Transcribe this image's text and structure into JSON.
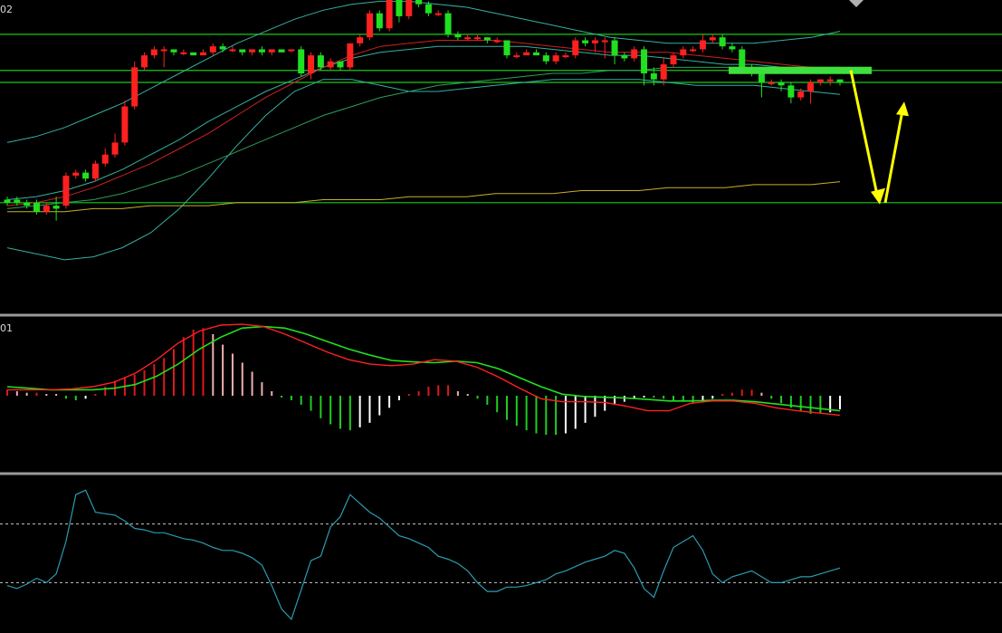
{
  "panels": {
    "price_label": "02",
    "macd_label": "01",
    "osc_label": ""
  },
  "colors": {
    "background": "#000000",
    "up_candle": "#ff2020",
    "down_candle": "#20e020",
    "horizontal_level": "#19c819",
    "bollinger": "#35b0a0",
    "ma_short": "#cc2222",
    "ma_mid": "#2e9e5a",
    "ma_long": "#c8b028",
    "annotation_arrow": "#ffff00",
    "resistance_bar": "#3ee03e",
    "macd_dif": "#ff2020",
    "macd_dea": "#20e020",
    "hist_pos": "#e01818",
    "hist_pos_fading": "#f0b0b0",
    "hist_neg": "#20cc20",
    "hist_neg_fading": "#ffffff",
    "oscillator": "#2a9cb0",
    "panel_divider": "#9a9a9a",
    "dashed_ref": "#c8c8c8"
  },
  "chart_data": {
    "type": "candlestick-with-indicators",
    "bar_count": 86,
    "price_panel": {
      "ylim": [
        0,
        100
      ],
      "horizontal_levels": [
        91,
        79,
        75,
        35
      ],
      "candles": [
        [
          36,
          35,
          34,
          37
        ],
        [
          36,
          35,
          34,
          37
        ],
        [
          35,
          34,
          33,
          36
        ],
        [
          35,
          32,
          31,
          36
        ],
        [
          32,
          34,
          31,
          35
        ],
        [
          34,
          33,
          29,
          37
        ],
        [
          34,
          44,
          33,
          45
        ],
        [
          44,
          45,
          43,
          46
        ],
        [
          45,
          43,
          42,
          46
        ],
        [
          43,
          48,
          42,
          49
        ],
        [
          48,
          51,
          47,
          53
        ],
        [
          51,
          55,
          50,
          58
        ],
        [
          55,
          67,
          54,
          69
        ],
        [
          67,
          80,
          66,
          82
        ],
        [
          80,
          84,
          79,
          85
        ],
        [
          84,
          86,
          83,
          87
        ],
        [
          86,
          86,
          80,
          87
        ],
        [
          86,
          85,
          84,
          86
        ],
        [
          85,
          85,
          84,
          86
        ],
        [
          85,
          84,
          84,
          85
        ],
        [
          84,
          85,
          84,
          86
        ],
        [
          85,
          87,
          84,
          88
        ],
        [
          87,
          86,
          85,
          88
        ],
        [
          86,
          86,
          85,
          87
        ],
        [
          86,
          85,
          84,
          86
        ],
        [
          85,
          86,
          84,
          86
        ],
        [
          86,
          85,
          84,
          87
        ],
        [
          85,
          86,
          84,
          86
        ],
        [
          86,
          85,
          85,
          86
        ],
        [
          86,
          86,
          85,
          86
        ],
        [
          86,
          78,
          77,
          87
        ],
        [
          78,
          84,
          76,
          85
        ],
        [
          84,
          80,
          79,
          85
        ],
        [
          80,
          82,
          79,
          83
        ],
        [
          82,
          80,
          79,
          82
        ],
        [
          80,
          88,
          79,
          88
        ],
        [
          88,
          90,
          87,
          91
        ],
        [
          90,
          98,
          89,
          99
        ],
        [
          98,
          93,
          92,
          99
        ],
        [
          93,
          104,
          92,
          105
        ],
        [
          104,
          97,
          95,
          106
        ],
        [
          97,
          103,
          96,
          104
        ],
        [
          103,
          101,
          100,
          104
        ],
        [
          101,
          98,
          97,
          102
        ],
        [
          98,
          98,
          97,
          99
        ],
        [
          98,
          91,
          90,
          99
        ],
        [
          91,
          90,
          89,
          92
        ],
        [
          90,
          90,
          89,
          91
        ],
        [
          90,
          90,
          89,
          91
        ],
        [
          90,
          89,
          88,
          90
        ],
        [
          89,
          89,
          88,
          90
        ],
        [
          89,
          84,
          83,
          89
        ],
        [
          84,
          84,
          83,
          85
        ],
        [
          84,
          85,
          84,
          86
        ],
        [
          85,
          84,
          84,
          86
        ],
        [
          84,
          82,
          81,
          85
        ],
        [
          82,
          84,
          81,
          85
        ],
        [
          84,
          84,
          83,
          85
        ],
        [
          84,
          89,
          83,
          90
        ],
        [
          89,
          88,
          87,
          90
        ],
        [
          88,
          89,
          85,
          90
        ],
        [
          89,
          89,
          83,
          90
        ],
        [
          89,
          84,
          81,
          90
        ],
        [
          84,
          83,
          82,
          85
        ],
        [
          83,
          86,
          82,
          87
        ],
        [
          86,
          78,
          74,
          87
        ],
        [
          78,
          76,
          74,
          80
        ],
        [
          76,
          81,
          74,
          83
        ],
        [
          81,
          84,
          80,
          85
        ],
        [
          84,
          86,
          83,
          87
        ],
        [
          86,
          86,
          85,
          87
        ],
        [
          86,
          89,
          85,
          91
        ],
        [
          89,
          90,
          88,
          91
        ],
        [
          90,
          87,
          86,
          91
        ],
        [
          87,
          86,
          85,
          88
        ],
        [
          86,
          80,
          78,
          87
        ],
        [
          80,
          78,
          77,
          81
        ],
        [
          78,
          75,
          70,
          78
        ],
        [
          75,
          75,
          74,
          76
        ],
        [
          75,
          74,
          72,
          76
        ],
        [
          74,
          70,
          68,
          75
        ],
        [
          70,
          72,
          69,
          73
        ],
        [
          72,
          75,
          68,
          76
        ],
        [
          75,
          76,
          74,
          76
        ],
        [
          76,
          76,
          74,
          77
        ],
        [
          76,
          75,
          74,
          76
        ]
      ],
      "bollinger_upper": [
        55,
        57,
        60,
        64,
        68,
        73,
        78,
        83,
        88,
        92,
        96,
        99,
        101,
        102,
        102,
        101,
        100,
        98,
        96,
        94,
        92,
        90,
        89,
        88,
        88,
        88,
        88,
        89,
        90,
        92
      ],
      "bollinger_middle": [
        36,
        37,
        39,
        42,
        46,
        51,
        56,
        62,
        67,
        72,
        76,
        80,
        83,
        85,
        86,
        87,
        87,
        87,
        87,
        86,
        85,
        84,
        84,
        83,
        82,
        81,
        81,
        80,
        80,
        79
      ],
      "bollinger_lower": [
        20,
        18,
        16,
        17,
        20,
        25,
        33,
        43,
        54,
        64,
        72,
        76,
        76,
        74,
        72,
        72,
        73,
        74,
        75,
        76,
        76,
        76,
        76,
        75,
        74,
        74,
        74,
        73,
        72,
        71
      ],
      "ma_short": [
        34,
        35,
        37,
        40,
        44,
        48,
        53,
        58,
        64,
        70,
        75,
        80,
        84,
        87,
        88,
        89,
        89,
        89,
        88,
        87,
        86,
        85,
        85,
        85,
        84,
        83,
        82,
        81,
        80,
        79
      ],
      "ma_mid": [
        33,
        34,
        35,
        36,
        38,
        41,
        44,
        48,
        52,
        56,
        60,
        64,
        67,
        70,
        72,
        74,
        75,
        76,
        77,
        78,
        78,
        79,
        79,
        80,
        80,
        80,
        80,
        80,
        80,
        80
      ],
      "ma_long": [
        32,
        32,
        32,
        33,
        33,
        34,
        34,
        34,
        35,
        35,
        35,
        36,
        36,
        36,
        37,
        37,
        37,
        38,
        38,
        38,
        39,
        39,
        39,
        40,
        40,
        40,
        41,
        41,
        41,
        42
      ],
      "annotations": {
        "resistance_bar_level": 79,
        "arrow_down_from": 79,
        "arrow_down_to": 35,
        "arrow_up_to": 68
      }
    },
    "macd_panel": {
      "ylim": [
        -1,
        1
      ],
      "histogram": [
        0.08,
        0.06,
        0.04,
        0.04,
        0.02,
        0.0,
        -0.04,
        -0.06,
        -0.04,
        0.02,
        0.12,
        0.2,
        0.24,
        0.28,
        0.34,
        0.42,
        0.5,
        0.62,
        0.78,
        0.88,
        0.9,
        0.82,
        0.68,
        0.56,
        0.44,
        0.32,
        0.18,
        0.06,
        -0.02,
        -0.06,
        -0.12,
        -0.2,
        -0.3,
        -0.38,
        -0.44,
        -0.46,
        -0.42,
        -0.36,
        -0.26,
        -0.16,
        -0.06,
        0.0,
        0.06,
        0.12,
        0.14,
        0.14,
        0.06,
        0.02,
        -0.04,
        -0.12,
        -0.22,
        -0.32,
        -0.4,
        -0.46,
        -0.5,
        -0.52,
        -0.52,
        -0.5,
        -0.44,
        -0.36,
        -0.28,
        -0.2,
        -0.12,
        -0.08,
        -0.04,
        -0.02,
        -0.02,
        -0.04,
        -0.06,
        -0.08,
        -0.1,
        -0.08,
        -0.04,
        0.0,
        0.04,
        0.08,
        0.08,
        0.04,
        -0.04,
        -0.1,
        -0.16,
        -0.2,
        -0.24,
        -0.24,
        -0.22,
        -0.18
      ],
      "dif": [
        0.08,
        0.08,
        0.08,
        0.09,
        0.12,
        0.18,
        0.3,
        0.48,
        0.7,
        0.86,
        0.94,
        0.95,
        0.92,
        0.82,
        0.7,
        0.58,
        0.48,
        0.42,
        0.4,
        0.42,
        0.48,
        0.46,
        0.38,
        0.25,
        0.1,
        -0.04,
        -0.08,
        -0.08,
        -0.09,
        -0.14,
        -0.2,
        -0.2,
        -0.1,
        -0.07,
        -0.07,
        -0.1,
        -0.16,
        -0.2,
        -0.23,
        -0.26
      ],
      "dea": [
        0.12,
        0.1,
        0.08,
        0.08,
        0.08,
        0.1,
        0.15,
        0.26,
        0.42,
        0.62,
        0.78,
        0.9,
        0.92,
        0.9,
        0.82,
        0.72,
        0.62,
        0.54,
        0.47,
        0.45,
        0.44,
        0.46,
        0.44,
        0.36,
        0.24,
        0.12,
        0.02,
        -0.01,
        -0.02,
        -0.03,
        -0.05,
        -0.07,
        -0.07,
        -0.06,
        -0.06,
        -0.08,
        -0.11,
        -0.14,
        -0.17,
        -0.2
      ]
    },
    "oscillator_panel": {
      "ylim": [
        0,
        100
      ],
      "reference_lines": [
        70,
        30
      ],
      "values": [
        28,
        26,
        29,
        33,
        30,
        36,
        58,
        90,
        93,
        78,
        77,
        76,
        72,
        67,
        66,
        64,
        64,
        62,
        60,
        59,
        57,
        54,
        52,
        52,
        50,
        47,
        42,
        28,
        12,
        5,
        25,
        45,
        48,
        68,
        75,
        90,
        84,
        78,
        74,
        68,
        62,
        60,
        57,
        54,
        48,
        46,
        43,
        38,
        30,
        24,
        24,
        27,
        27,
        28,
        30,
        32,
        36,
        38,
        41,
        44,
        46,
        48,
        52,
        50,
        40,
        26,
        20,
        38,
        54,
        58,
        62,
        52,
        36,
        30,
        34,
        36,
        38,
        34,
        30,
        30,
        32,
        34,
        34,
        36,
        38,
        40
      ]
    }
  }
}
